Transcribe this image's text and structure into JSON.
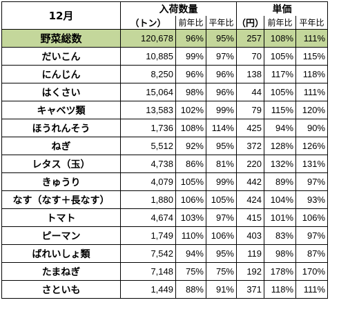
{
  "header": {
    "month": "12月",
    "volume_group": "入荷数量",
    "price_group": "単価",
    "volume_unit": "（トン）",
    "price_unit": "（円）",
    "yoy": "前年比",
    "vs_avg": "平年比"
  },
  "total": {
    "name": "野菜総数",
    "volume": "120,678",
    "volume_yoy": "96%",
    "volume_avg": "95%",
    "price": "257",
    "price_yoy": "108%",
    "price_avg": "111%"
  },
  "rows": [
    {
      "name": "だいこん",
      "volume": "10,885",
      "volume_yoy": "99%",
      "volume_avg": "97%",
      "price": "70",
      "price_yoy": "105%",
      "price_avg": "115%"
    },
    {
      "name": "にんじん",
      "volume": "8,250",
      "volume_yoy": "96%",
      "volume_avg": "96%",
      "price": "138",
      "price_yoy": "117%",
      "price_avg": "118%"
    },
    {
      "name": "はくさい",
      "volume": "15,064",
      "volume_yoy": "98%",
      "volume_avg": "96%",
      "price": "44",
      "price_yoy": "105%",
      "price_avg": "111%"
    },
    {
      "name": "キャベツ類",
      "volume": "13,583",
      "volume_yoy": "102%",
      "volume_avg": "99%",
      "price": "79",
      "price_yoy": "115%",
      "price_avg": "120%"
    },
    {
      "name": "ほうれんそう",
      "volume": "1,736",
      "volume_yoy": "108%",
      "volume_avg": "114%",
      "price": "425",
      "price_yoy": "94%",
      "price_avg": "90%"
    },
    {
      "name": "ねぎ",
      "volume": "5,512",
      "volume_yoy": "92%",
      "volume_avg": "95%",
      "price": "372",
      "price_yoy": "128%",
      "price_avg": "126%"
    },
    {
      "name": "レタス（玉）",
      "volume": "4,738",
      "volume_yoy": "86%",
      "volume_avg": "81%",
      "price": "220",
      "price_yoy": "132%",
      "price_avg": "131%"
    },
    {
      "name": "きゅうり",
      "volume": "4,079",
      "volume_yoy": "105%",
      "volume_avg": "99%",
      "price": "442",
      "price_yoy": "89%",
      "price_avg": "97%"
    },
    {
      "name": "なす（なす＋長なす）",
      "volume": "1,880",
      "volume_yoy": "106%",
      "volume_avg": "105%",
      "price": "424",
      "price_yoy": "104%",
      "price_avg": "93%"
    },
    {
      "name": "トマト",
      "volume": "4,674",
      "volume_yoy": "103%",
      "volume_avg": "97%",
      "price": "415",
      "price_yoy": "101%",
      "price_avg": "106%"
    },
    {
      "name": "ピーマン",
      "volume": "1,749",
      "volume_yoy": "110%",
      "volume_avg": "106%",
      "price": "403",
      "price_yoy": "83%",
      "price_avg": "97%"
    },
    {
      "name": "ばれいしょ類",
      "volume": "7,542",
      "volume_yoy": "94%",
      "volume_avg": "95%",
      "price": "119",
      "price_yoy": "98%",
      "price_avg": "87%"
    },
    {
      "name": "たまねぎ",
      "volume": "7,148",
      "volume_yoy": "75%",
      "volume_avg": "75%",
      "price": "192",
      "price_yoy": "178%",
      "price_avg": "170%"
    },
    {
      "name": "さといも",
      "volume": "1,449",
      "volume_yoy": "88%",
      "volume_avg": "91%",
      "price": "371",
      "price_yoy": "118%",
      "price_avg": "111%"
    }
  ],
  "colors": {
    "total_row_bg": "#c4d79b",
    "border": "#000000"
  }
}
